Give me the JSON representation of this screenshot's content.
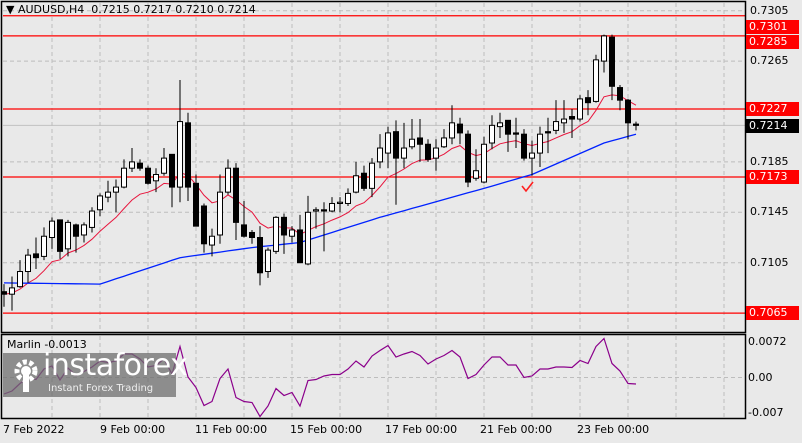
{
  "header": {
    "symbol": "AUDUSD,H4",
    "ohlc": "0.7215 0.7217 0.7210 0.7214"
  },
  "indicator": {
    "label": "Marlin -0.0013"
  },
  "watermark": {
    "name": "instaforex",
    "tagline": "Instant Forex Trading"
  },
  "colors": {
    "background": "#e9e9e9",
    "level": "#ff0000",
    "ma_fast": "#e8143c",
    "ma_slow": "#0022ff",
    "oscillator": "#8b008b",
    "bull": "#ffffff",
    "bear": "#000000"
  },
  "chart_data": [
    {
      "type": "candlestick",
      "title": "AUDUSD,H4",
      "ylim": [
        0.7057,
        0.7313
      ],
      "y_ticks": [
        "0.7305",
        "0.7265",
        "0.7185",
        "0.7145",
        "0.7105"
      ],
      "x_ticks": [
        "7 Feb 2022",
        "9 Feb 00:00",
        "11 Feb 00:00",
        "15 Feb 00:00",
        "17 Feb 00:00",
        "21 Feb 00:00",
        "23 Feb 00:00"
      ],
      "grid": true,
      "levels": [
        {
          "label": "0.7301",
          "value": 0.7301
        },
        {
          "label": "0.7285",
          "value": 0.7285
        },
        {
          "label": "0.7227",
          "value": 0.7227
        },
        {
          "label": "0.7173",
          "value": 0.7173
        },
        {
          "label": "0.7065",
          "value": 0.7065
        }
      ],
      "current_price": {
        "label": "0.7214",
        "value": 0.7214
      },
      "candles": [
        [
          0.7082,
          0.7088,
          0.707,
          0.708
        ],
        [
          0.708,
          0.7094,
          0.7067,
          0.7085
        ],
        [
          0.7086,
          0.7107,
          0.7085,
          0.7098
        ],
        [
          0.7098,
          0.7116,
          0.7089,
          0.7111
        ],
        [
          0.7112,
          0.7125,
          0.71,
          0.7109
        ],
        [
          0.711,
          0.7133,
          0.7107,
          0.7126
        ],
        [
          0.7125,
          0.7141,
          0.7116,
          0.7138
        ],
        [
          0.7139,
          0.7139,
          0.7108,
          0.7114
        ],
        [
          0.7116,
          0.7139,
          0.711,
          0.7137
        ],
        [
          0.7135,
          0.7136,
          0.7113,
          0.7126
        ],
        [
          0.7127,
          0.7137,
          0.7121,
          0.7135
        ],
        [
          0.7133,
          0.7149,
          0.7129,
          0.7146
        ],
        [
          0.7147,
          0.716,
          0.7142,
          0.7158
        ],
        [
          0.7157,
          0.717,
          0.7153,
          0.7161
        ],
        [
          0.7161,
          0.7171,
          0.7145,
          0.7165
        ],
        [
          0.7165,
          0.7187,
          0.7164,
          0.718
        ],
        [
          0.718,
          0.7196,
          0.7177,
          0.7185
        ],
        [
          0.7184,
          0.7187,
          0.7178,
          0.718
        ],
        [
          0.718,
          0.7182,
          0.7167,
          0.7168
        ],
        [
          0.717,
          0.718,
          0.7161,
          0.7175
        ],
        [
          0.7176,
          0.7196,
          0.7174,
          0.7188
        ],
        [
          0.7191,
          0.7191,
          0.7149,
          0.7165
        ],
        [
          0.7165,
          0.725,
          0.7153,
          0.7217
        ],
        [
          0.7216,
          0.7224,
          0.7154,
          0.7165
        ],
        [
          0.7168,
          0.7175,
          0.7134,
          0.7134
        ],
        [
          0.715,
          0.7152,
          0.7113,
          0.712
        ],
        [
          0.7119,
          0.7132,
          0.711,
          0.7126
        ],
        [
          0.7127,
          0.7175,
          0.712,
          0.7161
        ],
        [
          0.7161,
          0.7187,
          0.7159,
          0.718
        ],
        [
          0.718,
          0.7184,
          0.7123,
          0.7137
        ],
        [
          0.7135,
          0.7154,
          0.7125,
          0.7126
        ],
        [
          0.7129,
          0.7131,
          0.712,
          0.7125
        ],
        [
          0.7125,
          0.7134,
          0.7087,
          0.7097
        ],
        [
          0.7098,
          0.7117,
          0.7093,
          0.7115
        ],
        [
          0.7114,
          0.7142,
          0.7112,
          0.7141
        ],
        [
          0.7141,
          0.7144,
          0.7112,
          0.7127
        ],
        [
          0.7126,
          0.7134,
          0.7121,
          0.7131
        ],
        [
          0.7131,
          0.7143,
          0.7105,
          0.7105
        ],
        [
          0.7104,
          0.7158,
          0.7103,
          0.7145
        ],
        [
          0.7146,
          0.7149,
          0.7132,
          0.7147
        ],
        [
          0.7147,
          0.7153,
          0.7114,
          0.7146
        ],
        [
          0.7146,
          0.7157,
          0.7145,
          0.7152
        ],
        [
          0.7152,
          0.7157,
          0.7145,
          0.7153
        ],
        [
          0.7152,
          0.7164,
          0.715,
          0.716
        ],
        [
          0.7161,
          0.7185,
          0.716,
          0.7174
        ],
        [
          0.7176,
          0.7182,
          0.7162,
          0.7164
        ],
        [
          0.7164,
          0.7188,
          0.7157,
          0.7184
        ],
        [
          0.7185,
          0.7207,
          0.718,
          0.7196
        ],
        [
          0.7192,
          0.7213,
          0.718,
          0.7208
        ],
        [
          0.7209,
          0.7218,
          0.7151,
          0.7188
        ],
        [
          0.7188,
          0.7216,
          0.718,
          0.7196
        ],
        [
          0.7197,
          0.7219,
          0.7195,
          0.7203
        ],
        [
          0.7204,
          0.7219,
          0.7185,
          0.7199
        ],
        [
          0.7199,
          0.7203,
          0.7185,
          0.7187
        ],
        [
          0.7188,
          0.7203,
          0.7178,
          0.7196
        ],
        [
          0.7197,
          0.7211,
          0.7196,
          0.7204
        ],
        [
          0.7204,
          0.723,
          0.7199,
          0.7216
        ],
        [
          0.7215,
          0.722,
          0.7199,
          0.7208
        ],
        [
          0.7207,
          0.721,
          0.7165,
          0.7169
        ],
        [
          0.7172,
          0.7195,
          0.717,
          0.7178
        ],
        [
          0.7169,
          0.7205,
          0.7168,
          0.7199
        ],
        [
          0.72,
          0.7222,
          0.7195,
          0.7214
        ],
        [
          0.7213,
          0.7224,
          0.7204,
          0.7216
        ],
        [
          0.7218,
          0.7218,
          0.7193,
          0.7207
        ],
        [
          0.7208,
          0.722,
          0.7196,
          0.7207
        ],
        [
          0.7207,
          0.7211,
          0.7186,
          0.7188
        ],
        [
          0.7188,
          0.7202,
          0.7174,
          0.7192
        ],
        [
          0.7192,
          0.7213,
          0.7181,
          0.7207
        ],
        [
          0.7209,
          0.722,
          0.7192,
          0.7208
        ],
        [
          0.721,
          0.7234,
          0.7207,
          0.7217
        ],
        [
          0.7216,
          0.7234,
          0.7208,
          0.7219
        ],
        [
          0.7221,
          0.7227,
          0.7204,
          0.7219
        ],
        [
          0.7219,
          0.7238,
          0.7217,
          0.7235
        ],
        [
          0.7236,
          0.7242,
          0.7222,
          0.7232
        ],
        [
          0.7233,
          0.727,
          0.7232,
          0.7266
        ],
        [
          0.7265,
          0.7286,
          0.7256,
          0.7285
        ],
        [
          0.7284,
          0.7286,
          0.7234,
          0.7245
        ],
        [
          0.7244,
          0.7246,
          0.7226,
          0.7234
        ],
        [
          0.7234,
          0.7235,
          0.7203,
          0.7216
        ],
        [
          0.7215,
          0.7217,
          0.721,
          0.7214
        ]
      ],
      "ma_slow_points": [
        [
          0,
          0.7089
        ],
        [
          12,
          0.7088
        ],
        [
          22,
          0.7109
        ],
        [
          31,
          0.7117
        ],
        [
          37,
          0.7121
        ],
        [
          47,
          0.7141
        ],
        [
          60,
          0.7164
        ],
        [
          66,
          0.7175
        ],
        [
          75,
          0.72
        ],
        [
          79,
          0.7207
        ]
      ],
      "annotation": "checkmark at bar 65"
    },
    {
      "type": "line",
      "title": "Marlin -0.0013",
      "ylim": [
        -0.0085,
        0.0085
      ],
      "y_ticks": [
        "0.0072",
        "0.00",
        "-0.007"
      ],
      "values": [
        -0.0033,
        -0.0027,
        -0.0012,
        0.0,
        -0.0004,
        0.0017,
        0.0023,
        -0.0005,
        0.0019,
        0.0004,
        0.0012,
        0.0021,
        0.0033,
        0.003,
        0.0033,
        0.0047,
        0.0047,
        0.0037,
        0.0021,
        0.0024,
        0.0037,
        0.0007,
        0.0062,
        0.0001,
        -0.002,
        -0.0056,
        -0.0048,
        -0.0002,
        0.0017,
        -0.004,
        -0.0048,
        -0.005,
        -0.0078,
        -0.0057,
        -0.0022,
        -0.0036,
        -0.003,
        -0.0057,
        -0.0006,
        -0.0004,
        0.0003,
        0.0006,
        0.0006,
        0.0017,
        0.0033,
        0.0021,
        0.0043,
        0.0054,
        0.0064,
        0.0041,
        0.0047,
        0.0052,
        0.0044,
        0.0027,
        0.0037,
        0.0044,
        0.0054,
        0.0041,
        -0.0002,
        0.0006,
        0.0025,
        0.0041,
        0.0041,
        0.0025,
        0.0025,
        0.0,
        0.0003,
        0.0017,
        0.0017,
        0.0021,
        0.0021,
        0.002,
        0.0034,
        0.0028,
        0.0062,
        0.0078,
        0.0028,
        0.0013,
        -0.0012,
        -0.0013
      ]
    }
  ]
}
